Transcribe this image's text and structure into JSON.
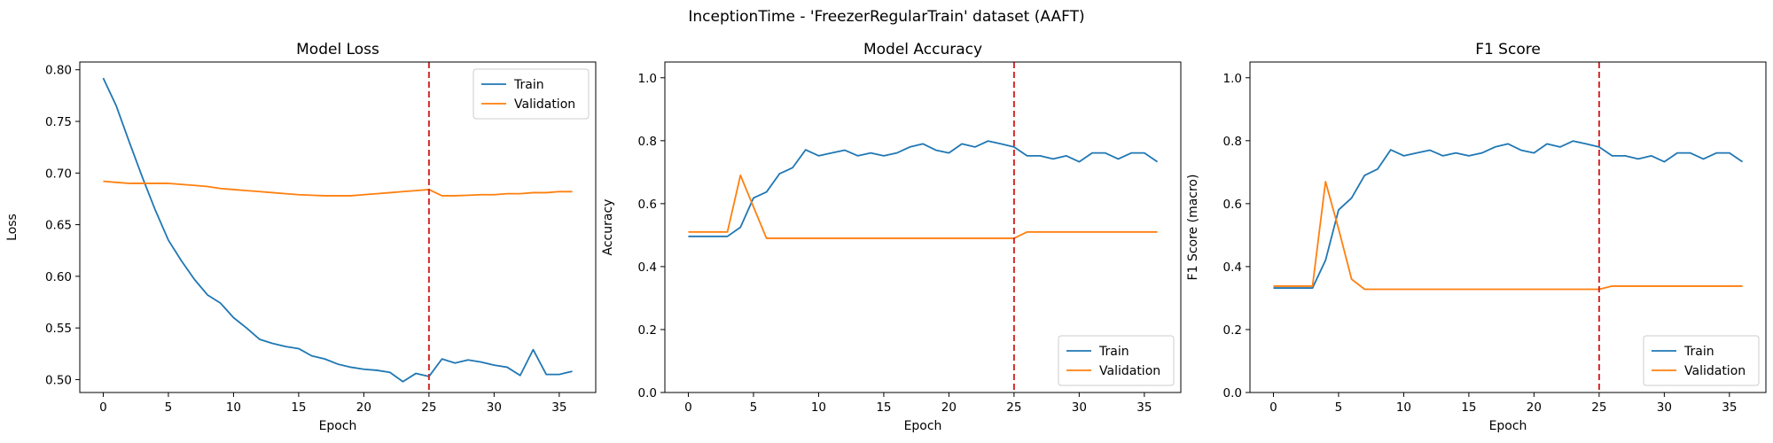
{
  "figure": {
    "title": "InceptionTime - 'FreezerRegularTrain' dataset (AAFT)"
  },
  "colors": {
    "train": "#1f77b4",
    "validation": "#ff7f0e",
    "marker": "#d62728"
  },
  "chart_data": [
    {
      "type": "line",
      "title": "Model Loss",
      "xlabel": "Epoch",
      "ylabel": "Loss",
      "xlim": [
        -1.8,
        37.8
      ],
      "ylim": [
        0.4875,
        0.8075
      ],
      "xticks": [
        0,
        5,
        10,
        15,
        20,
        25,
        30,
        35
      ],
      "yticks": [
        0.5,
        0.55,
        0.6,
        0.65,
        0.7,
        0.75,
        0.8
      ],
      "ytick_decimals": 2,
      "vline_x": 25,
      "legend_position": "top-right",
      "grid": false,
      "x": [
        0,
        1,
        2,
        3,
        4,
        5,
        6,
        7,
        8,
        9,
        10,
        11,
        12,
        13,
        14,
        15,
        16,
        17,
        18,
        19,
        20,
        21,
        22,
        23,
        24,
        25,
        26,
        27,
        28,
        29,
        30,
        31,
        32,
        33,
        34,
        35,
        36
      ],
      "series": [
        {
          "name": "Train",
          "values": [
            0.792,
            0.765,
            0.73,
            0.696,
            0.664,
            0.635,
            0.615,
            0.597,
            0.582,
            0.574,
            0.56,
            0.55,
            0.539,
            0.535,
            0.532,
            0.53,
            0.523,
            0.52,
            0.515,
            0.512,
            0.51,
            0.509,
            0.507,
            0.498,
            0.506,
            0.503,
            0.52,
            0.516,
            0.519,
            0.517,
            0.514,
            0.512,
            0.504,
            0.529,
            0.505,
            0.505,
            0.508
          ]
        },
        {
          "name": "Validation",
          "values": [
            0.692,
            0.691,
            0.69,
            0.69,
            0.69,
            0.69,
            0.689,
            0.688,
            0.687,
            0.685,
            0.684,
            0.683,
            0.682,
            0.681,
            0.68,
            0.679,
            0.6785,
            0.678,
            0.678,
            0.678,
            0.679,
            0.68,
            0.681,
            0.682,
            0.683,
            0.684,
            0.678,
            0.678,
            0.6785,
            0.679,
            0.679,
            0.68,
            0.68,
            0.681,
            0.681,
            0.682,
            0.682
          ]
        }
      ]
    },
    {
      "type": "line",
      "title": "Model Accuracy",
      "xlabel": "Epoch",
      "ylabel": "Accuracy",
      "xlim": [
        -1.8,
        37.8
      ],
      "ylim": [
        0,
        1.05
      ],
      "xticks": [
        0,
        5,
        10,
        15,
        20,
        25,
        30,
        35
      ],
      "yticks": [
        0.0,
        0.2,
        0.4,
        0.6,
        0.8,
        1.0
      ],
      "ytick_decimals": 1,
      "vline_x": 25,
      "legend_position": "bottom-right",
      "grid": false,
      "x": [
        0,
        1,
        2,
        3,
        4,
        5,
        6,
        7,
        8,
        9,
        10,
        11,
        12,
        13,
        14,
        15,
        16,
        17,
        18,
        19,
        20,
        21,
        22,
        23,
        24,
        25,
        26,
        27,
        28,
        29,
        30,
        31,
        32,
        33,
        34,
        35,
        36
      ],
      "series": [
        {
          "name": "Train",
          "values": [
            0.496,
            0.496,
            0.496,
            0.496,
            0.525,
            0.618,
            0.637,
            0.695,
            0.714,
            0.771,
            0.752,
            0.761,
            0.77,
            0.752,
            0.761,
            0.752,
            0.761,
            0.78,
            0.79,
            0.77,
            0.761,
            0.79,
            0.78,
            0.799,
            0.79,
            0.78,
            0.752,
            0.752,
            0.742,
            0.752,
            0.733,
            0.761,
            0.761,
            0.742,
            0.761,
            0.761,
            0.733
          ]
        },
        {
          "name": "Validation",
          "values": [
            0.51,
            0.51,
            0.51,
            0.51,
            0.69,
            0.59,
            0.49,
            0.49,
            0.49,
            0.49,
            0.49,
            0.49,
            0.49,
            0.49,
            0.49,
            0.49,
            0.49,
            0.49,
            0.49,
            0.49,
            0.49,
            0.49,
            0.49,
            0.49,
            0.49,
            0.49,
            0.51,
            0.51,
            0.51,
            0.51,
            0.51,
            0.51,
            0.51,
            0.51,
            0.51,
            0.51,
            0.51
          ]
        }
      ]
    },
    {
      "type": "line",
      "title": "F1 Score",
      "xlabel": "Epoch",
      "ylabel": "F1 Score (macro)",
      "xlim": [
        -1.8,
        37.8
      ],
      "ylim": [
        0,
        1.05
      ],
      "xticks": [
        0,
        5,
        10,
        15,
        20,
        25,
        30,
        35
      ],
      "yticks": [
        0.0,
        0.2,
        0.4,
        0.6,
        0.8,
        1.0
      ],
      "ytick_decimals": 1,
      "vline_x": 25,
      "legend_position": "bottom-right",
      "grid": false,
      "x": [
        0,
        1,
        2,
        3,
        4,
        5,
        6,
        7,
        8,
        9,
        10,
        11,
        12,
        13,
        14,
        15,
        16,
        17,
        18,
        19,
        20,
        21,
        22,
        23,
        24,
        25,
        26,
        27,
        28,
        29,
        30,
        31,
        32,
        33,
        34,
        35,
        36
      ],
      "series": [
        {
          "name": "Train",
          "values": [
            0.332,
            0.332,
            0.332,
            0.332,
            0.42,
            0.58,
            0.618,
            0.69,
            0.71,
            0.771,
            0.752,
            0.761,
            0.77,
            0.752,
            0.761,
            0.752,
            0.761,
            0.78,
            0.79,
            0.77,
            0.761,
            0.79,
            0.78,
            0.799,
            0.79,
            0.78,
            0.752,
            0.752,
            0.742,
            0.752,
            0.733,
            0.761,
            0.761,
            0.742,
            0.761,
            0.761,
            0.733
          ]
        },
        {
          "name": "Validation",
          "values": [
            0.338,
            0.338,
            0.338,
            0.338,
            0.67,
            0.52,
            0.36,
            0.328,
            0.328,
            0.328,
            0.328,
            0.328,
            0.328,
            0.328,
            0.328,
            0.328,
            0.328,
            0.328,
            0.328,
            0.328,
            0.328,
            0.328,
            0.328,
            0.328,
            0.328,
            0.328,
            0.338,
            0.338,
            0.338,
            0.338,
            0.338,
            0.338,
            0.338,
            0.338,
            0.338,
            0.338,
            0.338
          ]
        }
      ]
    }
  ]
}
